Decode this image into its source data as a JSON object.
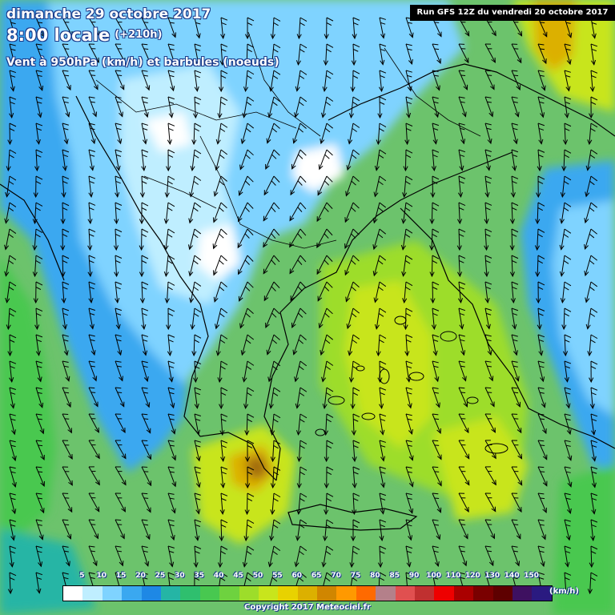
{
  "header": {
    "date": "dimanche 29 octobre 2017",
    "time": "8:00 locale",
    "offset": "(+210h)",
    "variable": "Vent à 950hPa (km/h) et barbules (noeuds)",
    "run": "Run GFS 12Z du vendredi 20 octobre 2017"
  },
  "legend": {
    "labels": [
      "5",
      "10",
      "15",
      "20",
      "25",
      "30",
      "35",
      "40",
      "45",
      "50",
      "55",
      "60",
      "65",
      "70",
      "75",
      "80",
      "85",
      "90",
      "100",
      "110",
      "120",
      "130",
      "140",
      "150"
    ],
    "colors": [
      "#ffffff",
      "#bfeeff",
      "#7fd3ff",
      "#3aa8f0",
      "#1e88e5",
      "#25b5a5",
      "#2fbf6e",
      "#48c850",
      "#6ed23f",
      "#9ddd2a",
      "#c8e51c",
      "#e8d200",
      "#dcb000",
      "#d08600",
      "#ff9900",
      "#ff6a00",
      "#b4808a",
      "#e05050",
      "#c03030",
      "#ee0000",
      "#aa0000",
      "#7a0000",
      "#5e0000",
      "#3e1060",
      "#2a1a80"
    ],
    "unit": "(km/h)"
  },
  "copyright": "Copyright 2017 Meteociel.fr",
  "map": {
    "blobs": [
      {
        "id": "atlantic-blue",
        "color": "#7fd3ff"
      },
      {
        "id": "north-light",
        "color": "#bfeeff"
      },
      {
        "id": "white-patches",
        "color": "#ffffff"
      },
      {
        "id": "east-blue",
        "color": "#3aa8f0"
      },
      {
        "id": "aegean-yellow",
        "color": "#c8e51c"
      },
      {
        "id": "south-orange",
        "color": "#dcb000"
      },
      {
        "id": "south-brown",
        "color": "#a06a10"
      },
      {
        "id": "ne-orange",
        "color": "#dcb000"
      }
    ]
  }
}
